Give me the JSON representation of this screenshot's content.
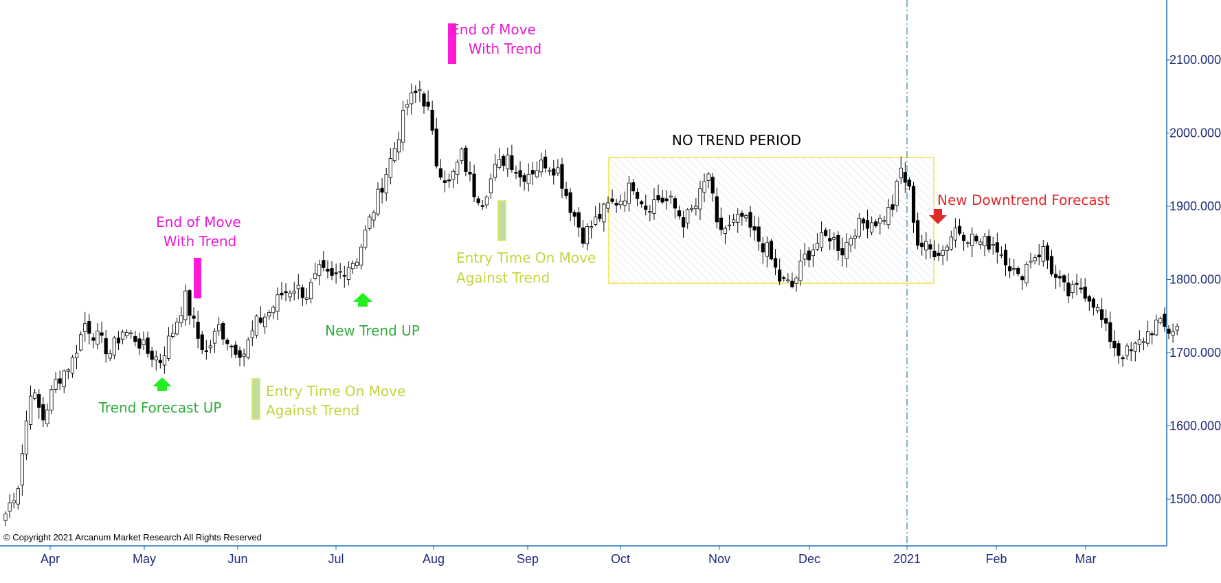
{
  "colors": {
    "axis": "#1f6fb0",
    "tick_text": "#1f2a7a",
    "magenta": "#ff1ad9",
    "green_arrow": "#22ee22",
    "green_text": "#2fae3a",
    "lime_text": "#c5d43e",
    "lime_bar": "#c0dca0",
    "red": "#e02a2a",
    "box_border": "#f0e040"
  },
  "copyright": "© Copyright 2021 Arcanum Market Research All Rights Reserved",
  "annotations": {
    "end_move_1_line1": "End of Move",
    "end_move_1_line2": "With Trend",
    "end_move_2_line1": "End of Move",
    "end_move_2_line2": "With Trend",
    "trend_forecast_up": "Trend Forecast UP",
    "new_trend_up": "New Trend UP",
    "entry_1_line1": "Entry Time On Move",
    "entry_1_line2": "Against Trend",
    "entry_2_line1": "Entry Time On Move",
    "entry_2_line2": "Against Trend",
    "no_trend": "NO TREND PERIOD",
    "new_downtrend": "New Downtrend Forecast"
  },
  "chart_data": {
    "type": "candlestick",
    "x_ticks": [
      "Apr",
      "May",
      "Jun",
      "Jul",
      "Aug",
      "Sep",
      "Oct",
      "Nov",
      "Dec",
      "2021",
      "Feb",
      "Mar"
    ],
    "y_ticks": [
      "1500.000",
      "1600.000",
      "1700.000",
      "1800.000",
      "1900.000",
      "2000.000",
      "2100.000"
    ],
    "y_tick_values": [
      1500,
      1600,
      1700,
      1800,
      1900,
      2000,
      2100
    ],
    "ylim": [
      1440,
      2180
    ],
    "close_path": [
      [
        0,
        1480
      ],
      [
        3,
        1520
      ],
      [
        6,
        1650
      ],
      [
        9,
        1610
      ],
      [
        12,
        1660
      ],
      [
        16,
        1690
      ],
      [
        19,
        1740
      ],
      [
        22,
        1720
      ],
      [
        25,
        1700
      ],
      [
        28,
        1730
      ],
      [
        31,
        1720
      ],
      [
        34,
        1700
      ],
      [
        37,
        1690
      ],
      [
        40,
        1730
      ],
      [
        43,
        1775
      ],
      [
        46,
        1720
      ],
      [
        48,
        1700
      ],
      [
        51,
        1735
      ],
      [
        54,
        1710
      ],
      [
        57,
        1700
      ],
      [
        60,
        1740
      ],
      [
        63,
        1755
      ],
      [
        66,
        1780
      ],
      [
        69,
        1790
      ],
      [
        72,
        1780
      ],
      [
        75,
        1810
      ],
      [
        78,
        1800
      ],
      [
        81,
        1815
      ],
      [
        84,
        1830
      ],
      [
        87,
        1880
      ],
      [
        90,
        1930
      ],
      [
        93,
        1980
      ],
      [
        96,
        2040
      ],
      [
        99,
        2060
      ],
      [
        101,
        2030
      ],
      [
        103,
        1960
      ],
      [
        106,
        1930
      ],
      [
        109,
        1970
      ],
      [
        112,
        1920
      ],
      [
        114,
        1910
      ],
      [
        117,
        1950
      ],
      [
        120,
        1970
      ],
      [
        123,
        1940
      ],
      [
        126,
        1950
      ],
      [
        129,
        1960
      ],
      [
        132,
        1950
      ],
      [
        135,
        1900
      ],
      [
        138,
        1860
      ],
      [
        141,
        1880
      ],
      [
        144,
        1900
      ],
      [
        147,
        1910
      ],
      [
        150,
        1930
      ],
      [
        153,
        1900
      ],
      [
        156,
        1910
      ],
      [
        159,
        1905
      ],
      [
        162,
        1880
      ],
      [
        165,
        1900
      ],
      [
        168,
        1945
      ],
      [
        170,
        1870
      ],
      [
        173,
        1870
      ],
      [
        176,
        1885
      ],
      [
        179,
        1860
      ],
      [
        182,
        1840
      ],
      [
        185,
        1800
      ],
      [
        188,
        1790
      ],
      [
        191,
        1830
      ],
      [
        194,
        1850
      ],
      [
        197,
        1860
      ],
      [
        200,
        1840
      ],
      [
        203,
        1870
      ],
      [
        206,
        1880
      ],
      [
        209,
        1880
      ],
      [
        212,
        1900
      ],
      [
        214,
        1950
      ],
      [
        216,
        1920
      ],
      [
        218,
        1850
      ],
      [
        221,
        1840
      ],
      [
        224,
        1840
      ],
      [
        227,
        1870
      ],
      [
        230,
        1860
      ],
      [
        233,
        1850
      ],
      [
        236,
        1850
      ],
      [
        239,
        1830
      ],
      [
        242,
        1800
      ],
      [
        245,
        1830
      ],
      [
        248,
        1840
      ],
      [
        251,
        1800
      ],
      [
        254,
        1780
      ],
      [
        257,
        1790
      ],
      [
        260,
        1770
      ],
      [
        263,
        1730
      ],
      [
        266,
        1700
      ],
      [
        269,
        1700
      ],
      [
        272,
        1720
      ],
      [
        275,
        1740
      ],
      [
        278,
        1730
      ],
      [
        280,
        1735
      ]
    ],
    "regions": {
      "no_trend_box": {
        "x0_date": "Sep 22",
        "x1_date": "Jan 12",
        "y_top": 1968,
        "y_bottom": 1796
      }
    }
  }
}
